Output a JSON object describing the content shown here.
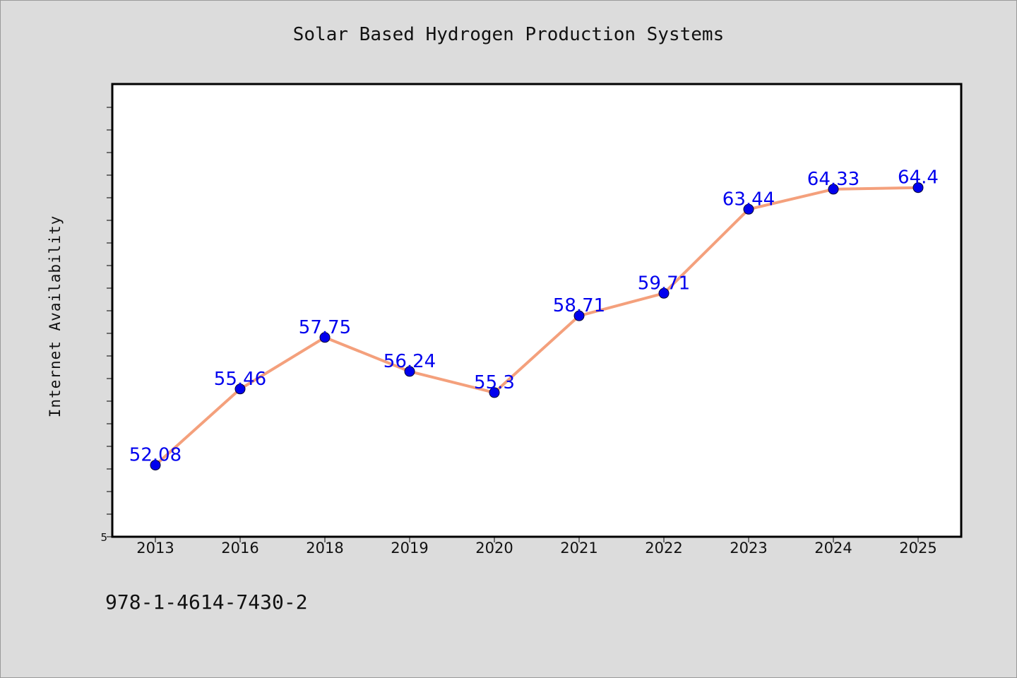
{
  "chart_data": {
    "type": "line",
    "title": "Solar Based Hydrogen Production Systems",
    "xlabel": "",
    "ylabel": "Internet Availability",
    "categories": [
      "2013",
      "2016",
      "2018",
      "2019",
      "2020",
      "2021",
      "2022",
      "2023",
      "2024",
      "2025"
    ],
    "series": [
      {
        "values": [
          52.08,
          55.46,
          57.75,
          56.24,
          55.3,
          58.71,
          59.71,
          63.44,
          64.33,
          64.4
        ],
        "data_labels": [
          "52.08",
          "55.46",
          "57.75",
          "56.24",
          "55.3",
          "58.71",
          "59.71",
          "63.44",
          "64.33",
          "64.4"
        ]
      }
    ],
    "ylim": [
      48.9,
      69
    ],
    "y_tick_label": "5",
    "grid": false,
    "legend": "none",
    "colors": {
      "line": "#f4a07c",
      "marker": "#0000ee",
      "data_label": "#0000ee",
      "background": "#dcdcdc",
      "plot_background": "#ffffff"
    }
  },
  "footnote": "978-1-4614-7430-2"
}
